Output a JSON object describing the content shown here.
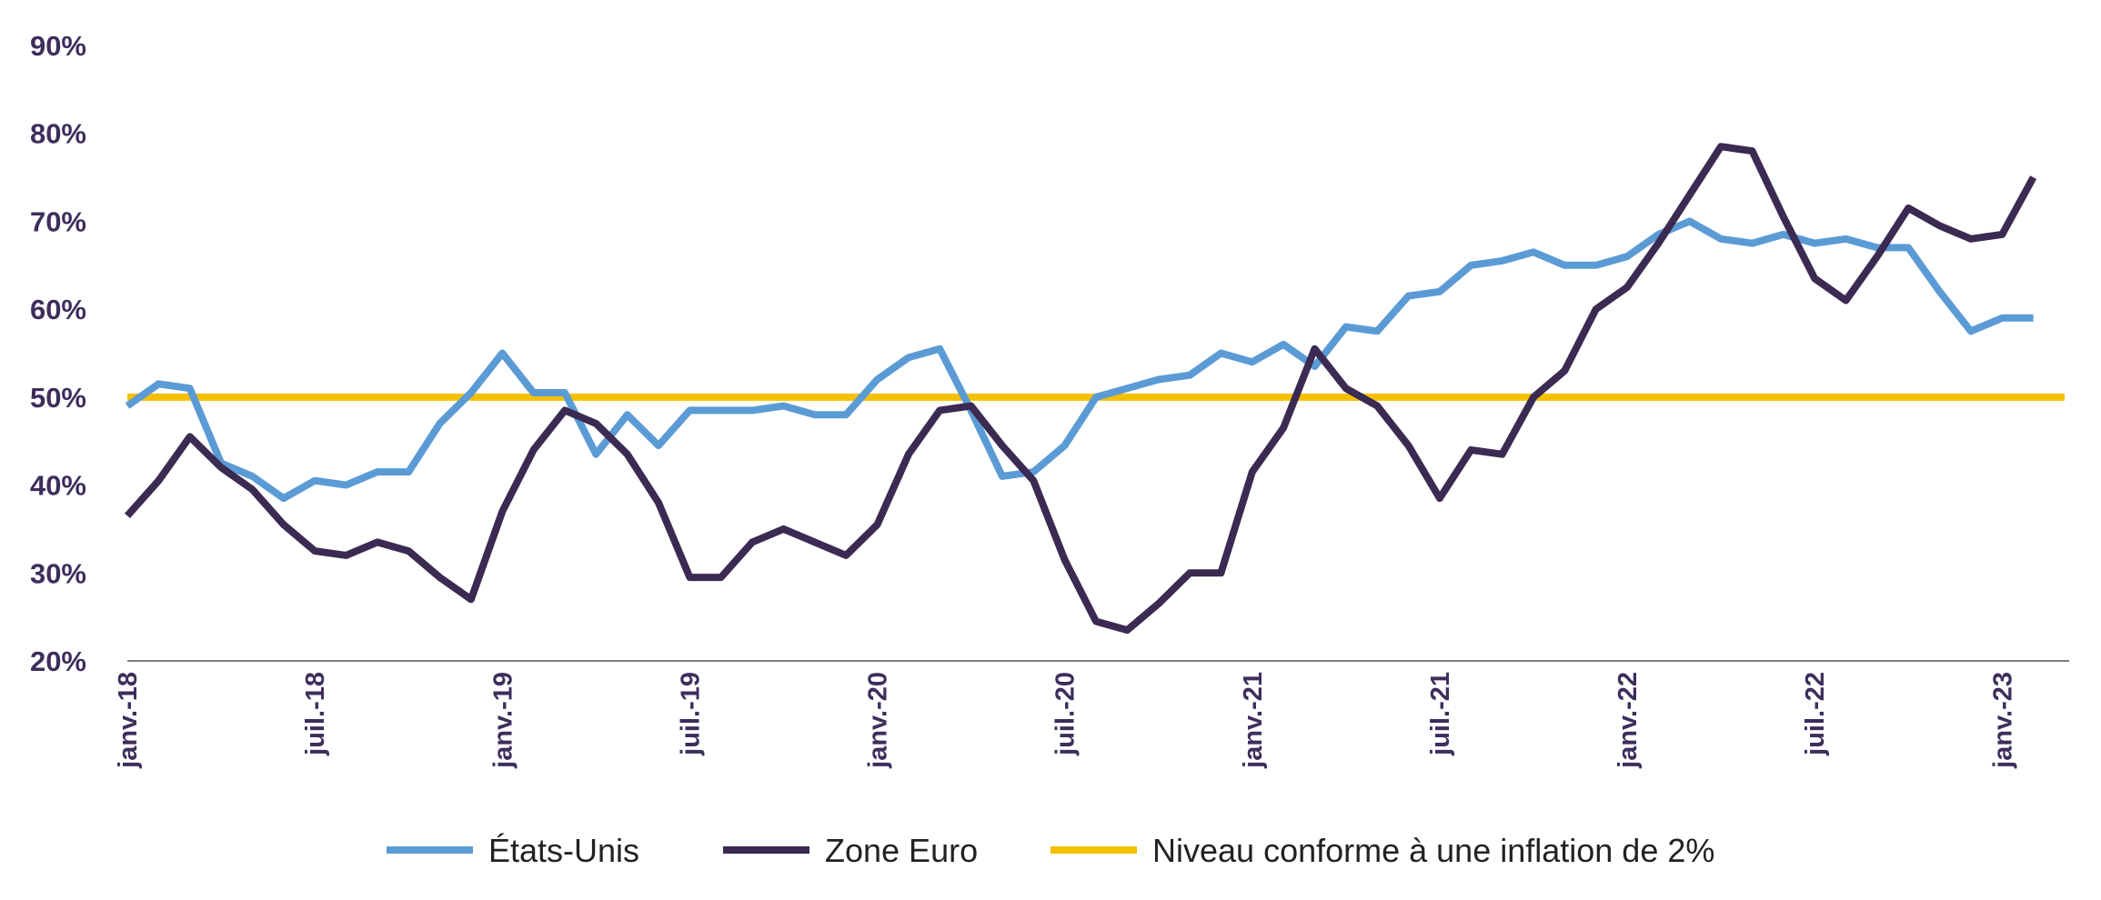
{
  "chart_data": {
    "type": "line",
    "title": "",
    "xlabel": "",
    "ylabel": "",
    "ylim": [
      20,
      90
    ],
    "y_ticks": [
      "20%",
      "30%",
      "40%",
      "50%",
      "60%",
      "70%",
      "80%",
      "90%"
    ],
    "x_tick_labels": [
      "janv.-18",
      "juil.-18",
      "janv.-19",
      "juil.-19",
      "janv.-20",
      "juil.-20",
      "janv.-21",
      "juil.-21",
      "janv.-22",
      "juil.-22",
      "janv.-23"
    ],
    "x_start": "2018-01",
    "x_end": "2023-03",
    "grid": false,
    "legend_position": "bottom",
    "series": [
      {
        "name": "États-Unis",
        "color": "#5b9bd5",
        "values": [
          49,
          51.5,
          51,
          42.5,
          41,
          38.5,
          40.5,
          40,
          41.5,
          41.5,
          47,
          50.5,
          55,
          50.5,
          50.5,
          43.5,
          48,
          44.5,
          48.5,
          48.5,
          48.5,
          49,
          48,
          48,
          52,
          54.5,
          55.5,
          48.5,
          41,
          41.5,
          44.5,
          50,
          51,
          52,
          52.5,
          55,
          54,
          56,
          53.5,
          58,
          57.5,
          61.5,
          62,
          65,
          65.5,
          66.5,
          65,
          65,
          66,
          68.5,
          70,
          68,
          67.5,
          68.5,
          67.5,
          68,
          67,
          67,
          62,
          57.5,
          59,
          59
        ]
      },
      {
        "name": "Zone Euro",
        "color": "#3b2a52",
        "values": [
          36.5,
          40.5,
          45.5,
          42,
          39.5,
          35.5,
          32.5,
          32,
          33.5,
          32.5,
          29.5,
          27,
          37,
          44,
          48.5,
          47,
          43.5,
          38,
          29.5,
          29.5,
          33.5,
          35,
          33.5,
          32,
          35.5,
          43.5,
          48.5,
          49,
          44.5,
          40.5,
          31.5,
          24.5,
          23.5,
          26.5,
          30,
          30,
          41.5,
          46.5,
          55.5,
          51,
          49,
          44.5,
          38.5,
          44,
          43.5,
          50,
          53,
          60,
          62.5,
          67.5,
          73,
          78.5,
          78,
          70.5,
          63.5,
          61,
          66,
          71.5,
          69.5,
          68,
          68.5,
          75
        ]
      },
      {
        "name": "Niveau conforme à une inflation de 2%",
        "color": "#f5c000",
        "values": [
          50,
          50
        ]
      }
    ]
  }
}
